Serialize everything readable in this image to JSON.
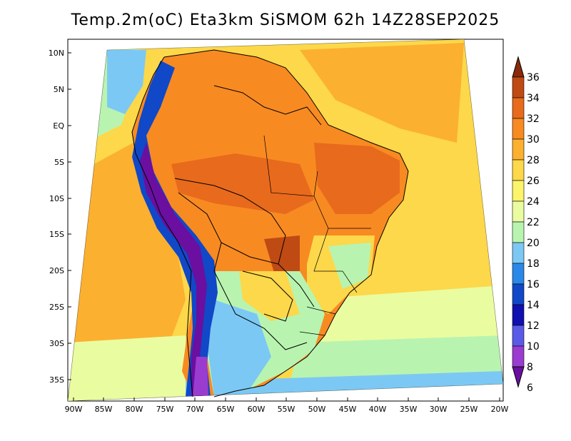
{
  "title": "Temp.2m(oC) Eta3km SiSMOM 62h 14Z28SEP2025",
  "lat_ticks": [
    "10N",
    "5N",
    "EQ",
    "5S",
    "10S",
    "15S",
    "20S",
    "25S",
    "30S",
    "35S"
  ],
  "lon_ticks": [
    "90W",
    "85W",
    "80W",
    "75W",
    "70W",
    "65W",
    "60W",
    "55W",
    "50W",
    "45W",
    "40W",
    "35W",
    "30W",
    "25W",
    "20W"
  ],
  "colorbar": {
    "levels": [
      "6",
      "8",
      "10",
      "12",
      "14",
      "16",
      "18",
      "20",
      "22",
      "24",
      "26",
      "28",
      "30",
      "32",
      "34",
      "36"
    ],
    "colors": [
      "#6a0fa0",
      "#9a3cd0",
      "#5a5ae8",
      "#1010b0",
      "#1048c8",
      "#2a88e8",
      "#7cc8f4",
      "#b8f4b0",
      "#eafca0",
      "#fcf46a",
      "#fcd84a",
      "#fcb030",
      "#f88a22",
      "#e86a1c",
      "#c04a14",
      "#8a2a0a"
    ]
  }
}
